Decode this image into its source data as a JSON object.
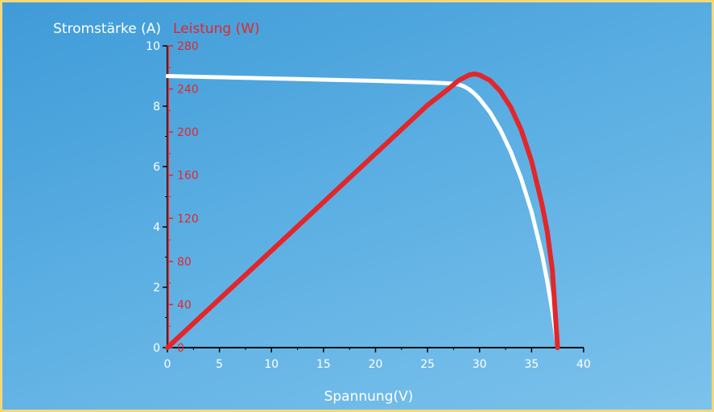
{
  "chart_data": {
    "type": "line",
    "title": "",
    "xlabel": "Spannung(V)",
    "ylabel_left": "Stromstärke (A)",
    "ylabel_right": "Leistung (W)",
    "xlim": [
      0,
      40
    ],
    "ylim_left": [
      0,
      10
    ],
    "ylim_right": [
      0,
      280
    ],
    "x_ticks": [
      0,
      5,
      10,
      15,
      20,
      25,
      30,
      35,
      40
    ],
    "y_left_ticks": [
      0,
      2,
      4,
      6,
      8,
      10
    ],
    "y_right_ticks": [
      0,
      40,
      80,
      120,
      160,
      200,
      240,
      280
    ],
    "grid": false,
    "series": [
      {
        "axis": "left",
        "color": "#ffffff",
        "x": [
          0,
          5,
          10,
          15,
          20,
          25,
          27,
          28,
          28.5,
          29,
          29.5,
          30,
          31,
          32,
          33,
          34,
          35,
          36,
          36.5,
          37,
          37.5
        ],
        "y": [
          9.0,
          8.96,
          8.92,
          8.88,
          8.84,
          8.79,
          8.76,
          8.72,
          8.66,
          8.56,
          8.42,
          8.24,
          7.8,
          7.22,
          6.5,
          5.6,
          4.5,
          3.1,
          2.2,
          1.2,
          0.0
        ]
      },
      {
        "axis": "right",
        "color": "#e3262a",
        "x": [
          0,
          5,
          10,
          15,
          20,
          25,
          27,
          28,
          29,
          29.5,
          30,
          31,
          32,
          33,
          34,
          35,
          36,
          36.5,
          37,
          37.5
        ],
        "y": [
          0,
          45,
          90,
          135,
          180,
          225,
          240,
          248,
          253,
          254,
          253,
          248,
          238,
          223,
          202,
          173,
          133,
          108,
          72,
          0
        ]
      }
    ]
  }
}
